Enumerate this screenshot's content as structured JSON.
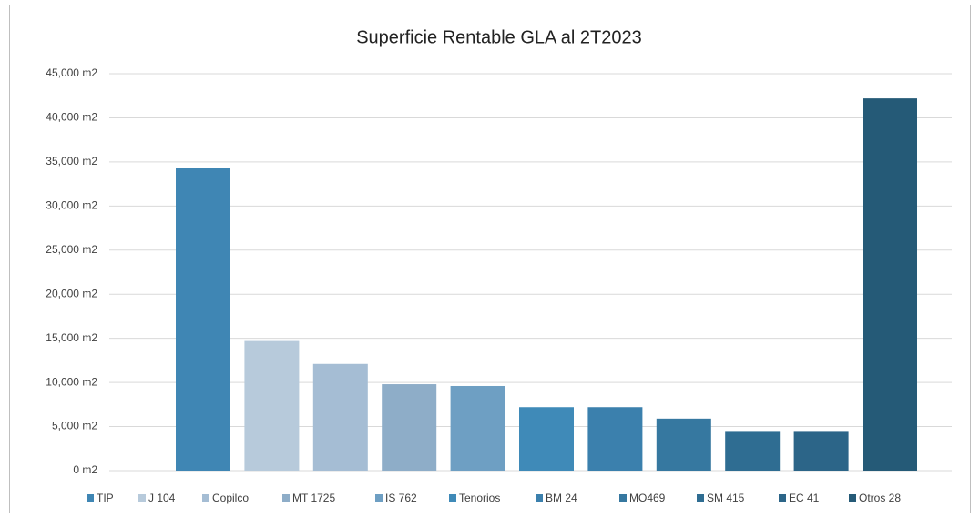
{
  "chart_data": {
    "type": "bar",
    "title": "Superficie Rentable GLA al 2T2023",
    "series": [
      {
        "name": "TIP",
        "color": "#3f86b4",
        "values": [
          34300
        ]
      },
      {
        "name": "J 104",
        "color": "#b7cadb",
        "values": [
          14700
        ]
      },
      {
        "name": "Copilco",
        "color": "#a5bdd4",
        "values": [
          12100
        ]
      },
      {
        "name": "MT 1725",
        "color": "#8eadc8",
        "values": [
          9800
        ]
      },
      {
        "name": "IS 762",
        "color": "#6e9fc3",
        "values": [
          9600
        ]
      },
      {
        "name": "Tenorios",
        "color": "#3f8ab8",
        "values": [
          7200
        ]
      },
      {
        "name": "BM 24",
        "color": "#3b80ad",
        "values": [
          7200
        ]
      },
      {
        "name": "MO469",
        "color": "#3678a0",
        "values": [
          5900
        ]
      },
      {
        "name": "SM 415",
        "color": "#2f6d92",
        "values": [
          4500
        ]
      },
      {
        "name": "EC 41",
        "color": "#2c6588",
        "values": [
          4500
        ]
      },
      {
        "name": "Otros 28",
        "color": "#255a77",
        "values": [
          42200
        ]
      }
    ],
    "ylim": [
      0,
      45000
    ],
    "yticks": [
      {
        "value": 0,
        "label": "0 m2"
      },
      {
        "value": 5000,
        "label": "5,000 m2"
      },
      {
        "value": 10000,
        "label": "10,000 m2"
      },
      {
        "value": 15000,
        "label": "15,000 m2"
      },
      {
        "value": 20000,
        "label": "20,000 m2"
      },
      {
        "value": 25000,
        "label": "25,000 m2"
      },
      {
        "value": 30000,
        "label": "30,000 m2"
      },
      {
        "value": 35000,
        "label": "35,000 m2"
      },
      {
        "value": 40000,
        "label": "40,000 m2"
      },
      {
        "value": 45000,
        "label": "45,000 m2"
      }
    ],
    "grid": true,
    "legend": "bottom"
  }
}
